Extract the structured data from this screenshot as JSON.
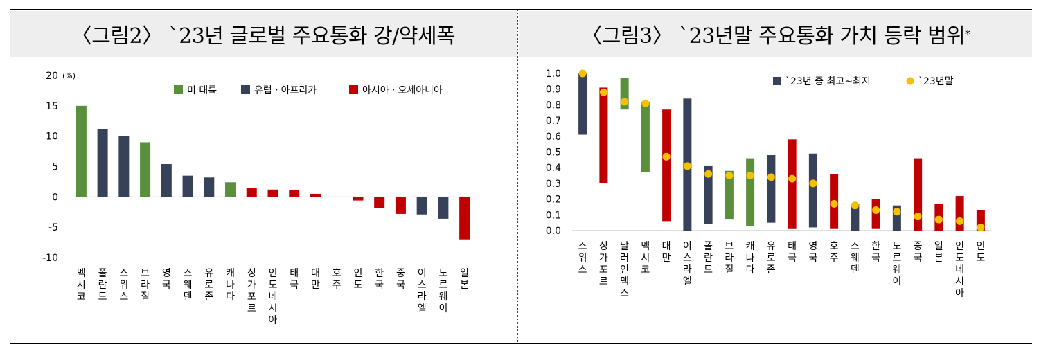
{
  "charts": [
    {
      "title": "〈그림2〉 `23년 글로벌 주요통화 강/약세폭",
      "unit": "(%)",
      "legend": [
        {
          "label": "미 대륙",
          "color": "#5a8f3c"
        },
        {
          "label": "유럽ㆍ아프리카",
          "color": "#37425a"
        },
        {
          "label": "아시아ㆍ오세아니아",
          "color": "#c00000"
        }
      ]
    },
    {
      "title": "〈그림3〉 `23년말 주요통화 가치 등락 범위",
      "title_mark": "*",
      "legend": [
        {
          "label": "`23년 중 최고~최저",
          "color": "#37425a"
        },
        {
          "label": "`23년말",
          "color": "#f5c000"
        }
      ]
    }
  ],
  "chart_data": [
    {
      "type": "bar",
      "title": "〈그림2〉 `23년 글로벌 주요통화 강/약세폭",
      "ylabel": "(%)",
      "ylim": [
        -10,
        20
      ],
      "yticks": [
        20,
        15,
        10,
        5,
        0,
        -5,
        -10
      ],
      "categories": [
        "멕시코",
        "폴란드",
        "스위스",
        "브라질",
        "영국",
        "스웨덴",
        "유로존",
        "캐나다",
        "싱가포르",
        "인도네시아",
        "태국",
        "대만",
        "호주",
        "인도",
        "한국",
        "중국",
        "이스라엘",
        "노르웨이",
        "일본"
      ],
      "values": [
        15.0,
        11.2,
        10.0,
        9.0,
        5.4,
        3.5,
        3.2,
        2.4,
        1.5,
        1.2,
        1.1,
        0.5,
        0.0,
        -0.6,
        -1.8,
        -2.8,
        -2.9,
        -3.6,
        -7.0
      ],
      "groups": [
        "미 대륙",
        "유럽ㆍ아프리카",
        "유럽ㆍ아프리카",
        "미 대륙",
        "유럽ㆍ아프리카",
        "유럽ㆍ아프리카",
        "유럽ㆍ아프리카",
        "미 대륙",
        "아시아ㆍ오세아니아",
        "아시아ㆍ오세아니아",
        "아시아ㆍ오세아니아",
        "아시아ㆍ오세아니아",
        "아시아ㆍ오세아니아",
        "아시아ㆍ오세아니아",
        "아시아ㆍ오세아니아",
        "아시아ㆍ오세아니아",
        "유럽ㆍ아프리카",
        "유럽ㆍ아프리카",
        "아시아ㆍ오세아니아"
      ]
    },
    {
      "type": "range_bar",
      "title": "〈그림3〉 `23년말 주요통화 가치 등락 범위",
      "ylim": [
        0,
        1.0
      ],
      "yticks": [
        "1.0",
        "0.9",
        "0.8",
        "0.7",
        "0.6",
        "0.5",
        "0.4",
        "0.3",
        "0.2",
        "0.1",
        "0.0"
      ],
      "categories": [
        "스위스",
        "싱가포르",
        "달러인덱스",
        "멕시코",
        "대만",
        "이스라엘",
        "폴란드",
        "브라질",
        "캐나다",
        "유로존",
        "태국",
        "영국",
        "호주",
        "스웨덴",
        "한국",
        "노르웨이",
        "중국",
        "일본",
        "인도네시아",
        "인도"
      ],
      "groups": [
        "유럽ㆍ아프리카",
        "아시아ㆍ오세아니아",
        "미 대륙",
        "미 대륙",
        "아시아ㆍ오세아니아",
        "유럽ㆍ아프리카",
        "유럽ㆍ아프리카",
        "미 대륙",
        "미 대륙",
        "유럽ㆍ아프리카",
        "아시아ㆍ오세아니아",
        "유럽ㆍ아프리카",
        "아시아ㆍ오세아니아",
        "유럽ㆍ아프리카",
        "아시아ㆍ오세아니아",
        "유럽ㆍ아프리카",
        "아시아ㆍ오세아니아",
        "아시아ㆍ오세아니아",
        "아시아ㆍ오세아니아",
        "아시아ㆍ오세아니아"
      ],
      "series": [
        {
          "name": "`23년 중 최고~최저",
          "low": [
            0.61,
            0.3,
            0.77,
            0.37,
            0.06,
            0.0,
            0.04,
            0.07,
            0.03,
            0.05,
            0.01,
            0.02,
            0.01,
            0.0,
            0.01,
            0.0,
            0.0,
            0.0,
            0.0,
            0.0
          ],
          "high": [
            1.0,
            0.91,
            0.97,
            0.82,
            0.77,
            0.84,
            0.41,
            0.38,
            0.46,
            0.48,
            0.58,
            0.49,
            0.36,
            0.17,
            0.2,
            0.16,
            0.46,
            0.17,
            0.22,
            0.13
          ]
        },
        {
          "name": "`23년말",
          "values": [
            1.0,
            0.88,
            0.82,
            0.81,
            0.47,
            0.41,
            0.36,
            0.35,
            0.35,
            0.34,
            0.33,
            0.3,
            0.17,
            0.16,
            0.13,
            0.12,
            0.09,
            0.07,
            0.06,
            0.02
          ]
        }
      ]
    }
  ]
}
